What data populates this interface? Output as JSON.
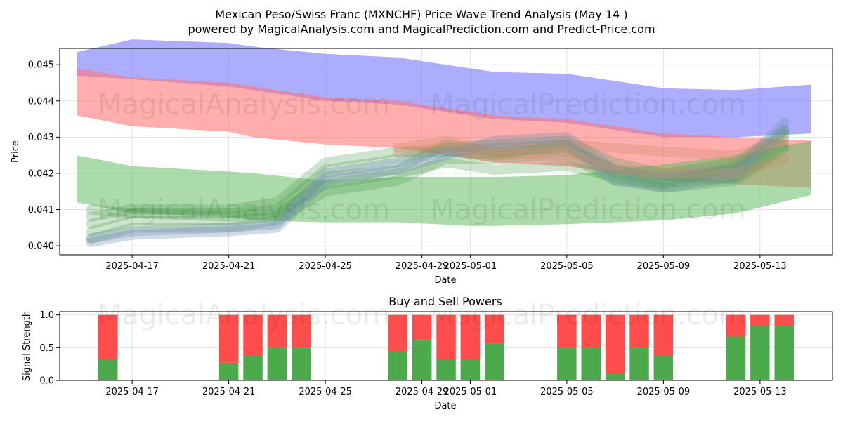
{
  "chart_data": [
    {
      "type": "area",
      "title_line1": "Mexican Peso/Swiss Franc (MXNCHF) Price Wave Trend Analysis (May 14 )",
      "title_line2": "powered by MagicalAnalysis.com and MagicalPrediction.com and Predict-Price.com",
      "xlabel": "Date",
      "ylabel": "Price",
      "x_domain": [
        "2025-04-14",
        "2025-05-16"
      ],
      "ylim": [
        0.03975,
        0.04545
      ],
      "x_ticks": [
        {
          "date": "2025-04-17",
          "label": "2025-04-17"
        },
        {
          "date": "2025-04-21",
          "label": "2025-04-21"
        },
        {
          "date": "2025-04-25",
          "label": "2025-04-25"
        },
        {
          "date": "2025-04-29",
          "label": "2025-04-29"
        },
        {
          "date": "2025-05-01",
          "label": "2025-05-01"
        },
        {
          "date": "2025-05-05",
          "label": "2025-05-05"
        },
        {
          "date": "2025-05-09",
          "label": "2025-05-09"
        },
        {
          "date": "2025-05-13",
          "label": "2025-05-13"
        }
      ],
      "y_ticks": [
        {
          "value": 0.04,
          "label": "0.040"
        },
        {
          "value": 0.041,
          "label": "0.041"
        },
        {
          "value": 0.042,
          "label": "0.042"
        },
        {
          "value": 0.043,
          "label": "0.043"
        },
        {
          "value": 0.044,
          "label": "0.044"
        },
        {
          "value": 0.045,
          "label": "0.045"
        }
      ],
      "grid": true,
      "bands": [
        {
          "name": "upper-band",
          "color": "#7777ff",
          "opacity": 0.6,
          "points": [
            [
              "2025-04-14.7",
              0.04535,
              0.0447
            ],
            [
              "2025-04-17",
              0.0457,
              0.0446
            ],
            [
              "2025-04-21",
              0.0456,
              0.0444
            ],
            [
              "2025-04-22",
              0.0455,
              0.0443
            ],
            [
              "2025-04-25",
              0.0453,
              0.044
            ],
            [
              "2025-04-28",
              0.0452,
              0.0439
            ],
            [
              "2025-05-01",
              0.0449,
              0.0436
            ],
            [
              "2025-05-02",
              0.0448,
              0.0435
            ],
            [
              "2025-05-05",
              0.04475,
              0.0434
            ],
            [
              "2025-05-09",
              0.04435,
              0.043
            ],
            [
              "2025-05-12",
              0.0443,
              0.043
            ],
            [
              "2025-05-15.1",
              0.04445,
              0.0431
            ]
          ]
        },
        {
          "name": "lower-band-red",
          "color": "#ff7777",
          "opacity": 0.6,
          "points": [
            [
              "2025-04-14.7",
              0.0449,
              0.0436
            ],
            [
              "2025-04-17",
              0.04465,
              0.0433
            ],
            [
              "2025-04-21",
              0.0445,
              0.04315
            ],
            [
              "2025-04-22",
              0.0444,
              0.043
            ],
            [
              "2025-04-25",
              0.0441,
              0.0428
            ],
            [
              "2025-04-28",
              0.044,
              0.0427
            ],
            [
              "2025-05-01",
              0.0437,
              0.0424
            ],
            [
              "2025-05-02",
              0.0436,
              0.0423
            ],
            [
              "2025-05-05",
              0.0435,
              0.0422
            ],
            [
              "2025-05-09",
              0.0431,
              0.0418
            ],
            [
              "2025-05-12",
              0.043,
              0.0417
            ],
            [
              "2025-05-15.1",
              0.0429,
              0.0416
            ]
          ]
        },
        {
          "name": "lower-band-green",
          "color": "#66bb66",
          "opacity": 0.55,
          "points": [
            [
              "2025-04-14.7",
              0.0425,
              0.0412
            ],
            [
              "2025-04-17",
              0.0422,
              0.0409
            ],
            [
              "2025-04-21",
              0.04205,
              0.0408
            ],
            [
              "2025-04-22",
              0.042,
              0.0407
            ],
            [
              "2025-04-25",
              0.0418,
              0.04065
            ],
            [
              "2025-04-28",
              0.0419,
              0.04065
            ],
            [
              "2025-05-01",
              0.0419,
              0.04055
            ],
            [
              "2025-05-02",
              0.0419,
              0.04055
            ],
            [
              "2025-05-05",
              0.04195,
              0.0406
            ],
            [
              "2025-05-09",
              0.04225,
              0.0407
            ],
            [
              "2025-05-12",
              0.0425,
              0.0409
            ],
            [
              "2025-05-15.1",
              0.0429,
              0.0414
            ]
          ]
        }
      ],
      "wave_paths": [
        {
          "color": "#4a9a4a",
          "opacity": 0.28,
          "points": [
            [
              "2025-04-15.3",
              0.0402
            ],
            [
              "2025-04-17",
              0.0405
            ],
            [
              "2025-04-21",
              0.0405
            ],
            [
              "2025-04-23",
              0.0407
            ],
            [
              "2025-04-25",
              0.0415
            ],
            [
              "2025-04-28",
              0.0418
            ],
            [
              "2025-04-30",
              0.0424
            ],
            [
              "2025-05-02",
              0.0424
            ],
            [
              "2025-05-05",
              0.0425
            ],
            [
              "2025-05-07",
              0.0418
            ],
            [
              "2025-05-09",
              0.0417
            ],
            [
              "2025-05-12",
              0.0419
            ],
            [
              "2025-05-14",
              0.0428
            ]
          ]
        },
        {
          "color": "#4a9a4a",
          "opacity": 0.28,
          "points": [
            [
              "2025-04-15.3",
              0.0404
            ],
            [
              "2025-04-17",
              0.0407
            ],
            [
              "2025-04-21",
              0.0407
            ],
            [
              "2025-04-23",
              0.0408
            ],
            [
              "2025-04-25",
              0.0419
            ],
            [
              "2025-04-28",
              0.0421
            ],
            [
              "2025-04-30",
              0.0428
            ],
            [
              "2025-05-02",
              0.0426
            ],
            [
              "2025-05-05",
              0.0427
            ],
            [
              "2025-05-07",
              0.0421
            ],
            [
              "2025-05-09",
              0.0418
            ],
            [
              "2025-05-12",
              0.0421
            ],
            [
              "2025-05-14",
              0.043
            ]
          ]
        },
        {
          "color": "#4a9a4a",
          "opacity": 0.28,
          "points": [
            [
              "2025-04-15.3",
              0.0406
            ],
            [
              "2025-04-17",
              0.0409
            ],
            [
              "2025-04-21",
              0.0409
            ],
            [
              "2025-04-23",
              0.041
            ],
            [
              "2025-04-25",
              0.0421
            ],
            [
              "2025-04-28",
              0.0424
            ],
            [
              "2025-04-30",
              0.0427
            ],
            [
              "2025-05-02",
              0.0428
            ],
            [
              "2025-05-05",
              0.0429
            ],
            [
              "2025-05-07",
              0.0423
            ],
            [
              "2025-05-09",
              0.042
            ],
            [
              "2025-05-12",
              0.0423
            ],
            [
              "2025-05-14",
              0.0432
            ]
          ]
        },
        {
          "color": "#4a9a4a",
          "opacity": 0.28,
          "points": [
            [
              "2025-04-15.3",
              0.0408
            ],
            [
              "2025-04-17",
              0.041
            ],
            [
              "2025-04-21",
              0.041
            ],
            [
              "2025-04-23",
              0.0412
            ],
            [
              "2025-04-25",
              0.0423
            ],
            [
              "2025-04-28",
              0.0426
            ],
            [
              "2025-04-30",
              0.0426
            ],
            [
              "2025-05-02",
              0.0425
            ],
            [
              "2025-05-05",
              0.0428
            ],
            [
              "2025-05-07",
              0.042
            ],
            [
              "2025-05-09",
              0.0417
            ],
            [
              "2025-05-12",
              0.0422
            ],
            [
              "2025-05-14",
              0.0431
            ]
          ]
        },
        {
          "color": "#4a9a4a",
          "opacity": 0.28,
          "points": [
            [
              "2025-04-15.3",
              0.041
            ],
            [
              "2025-04-17",
              0.0409
            ],
            [
              "2025-04-21",
              0.0408
            ],
            [
              "2025-04-23",
              0.0409
            ],
            [
              "2025-04-25",
              0.0417
            ],
            [
              "2025-04-28",
              0.042
            ],
            [
              "2025-04-30",
              0.0423
            ],
            [
              "2025-05-02",
              0.0421
            ],
            [
              "2025-05-05",
              0.0422
            ],
            [
              "2025-05-07",
              0.0419
            ],
            [
              "2025-05-09",
              0.0416
            ],
            [
              "2025-05-12",
              0.0418
            ],
            [
              "2025-05-14",
              0.0427
            ]
          ]
        },
        {
          "color": "#6f8fb5",
          "opacity": 0.32,
          "points": [
            [
              "2025-04-15.3",
              0.0402
            ],
            [
              "2025-04-17",
              0.0404
            ],
            [
              "2025-04-21",
              0.0405
            ],
            [
              "2025-04-23",
              0.0406
            ],
            [
              "2025-04-25",
              0.042
            ],
            [
              "2025-04-28",
              0.0423
            ],
            [
              "2025-04-30",
              0.0426
            ],
            [
              "2025-05-02",
              0.0427
            ],
            [
              "2025-05-05",
              0.0428
            ],
            [
              "2025-05-07",
              0.0418
            ],
            [
              "2025-05-09",
              0.0416
            ],
            [
              "2025-05-12",
              0.0419
            ],
            [
              "2025-05-14",
              0.0432
            ]
          ]
        },
        {
          "color": "#6f8fb5",
          "opacity": 0.32,
          "points": [
            [
              "2025-04-15.3",
              0.0401
            ],
            [
              "2025-04-17",
              0.0403
            ],
            [
              "2025-04-21",
              0.0404
            ],
            [
              "2025-04-23",
              0.0405
            ],
            [
              "2025-04-25",
              0.0418
            ],
            [
              "2025-04-28",
              0.0421
            ],
            [
              "2025-04-30",
              0.0425
            ],
            [
              "2025-05-02",
              0.0429
            ],
            [
              "2025-05-05",
              0.043
            ],
            [
              "2025-05-07",
              0.0421
            ],
            [
              "2025-05-09",
              0.0419
            ],
            [
              "2025-05-12",
              0.0421
            ],
            [
              "2025-05-14",
              0.0434
            ]
          ]
        },
        {
          "color": "#c98a6a",
          "opacity": 0.3,
          "points": [
            [
              "2025-04-28",
              0.0427
            ],
            [
              "2025-04-30",
              0.0429
            ],
            [
              "2025-05-02",
              0.0426
            ],
            [
              "2025-05-05",
              0.0428
            ],
            [
              "2025-05-07",
              0.0427
            ],
            [
              "2025-05-09",
              0.0426
            ],
            [
              "2025-05-12",
              0.0425
            ],
            [
              "2025-05-14",
              0.0429
            ]
          ]
        },
        {
          "color": "#c98a6a",
          "opacity": 0.3,
          "points": [
            [
              "2025-04-28",
              0.0426
            ],
            [
              "2025-04-30",
              0.0427
            ],
            [
              "2025-05-02",
              0.0425
            ],
            [
              "2025-05-05",
              0.0426
            ],
            [
              "2025-05-07",
              0.0421
            ],
            [
              "2025-05-09",
              0.042
            ],
            [
              "2025-05-12",
              0.042
            ],
            [
              "2025-05-14",
              0.0424
            ]
          ]
        }
      ],
      "watermarks": [
        "MagicalAnalysis.com",
        "MagicalPrediction.com"
      ]
    },
    {
      "type": "bar",
      "title": "Buy and Sell Powers",
      "xlabel": "Date",
      "ylabel": "Signal Strength",
      "ylim": [
        0,
        1.05
      ],
      "y_ticks": [
        {
          "value": 0.0,
          "label": "0.0"
        },
        {
          "value": 0.5,
          "label": "0.5"
        },
        {
          "value": 1.0,
          "label": "1.0"
        }
      ],
      "x_domain": [
        "2025-04-14",
        "2025-05-16"
      ],
      "x_ticks": [
        {
          "date": "2025-04-17",
          "label": "2025-04-17"
        },
        {
          "date": "2025-04-21",
          "label": "2025-04-21"
        },
        {
          "date": "2025-04-25",
          "label": "2025-04-25"
        },
        {
          "date": "2025-04-29",
          "label": "2025-04-29"
        },
        {
          "date": "2025-05-01",
          "label": "2025-05-01"
        },
        {
          "date": "2025-05-05",
          "label": "2025-05-05"
        },
        {
          "date": "2025-05-09",
          "label": "2025-05-09"
        },
        {
          "date": "2025-05-13",
          "label": "2025-05-13"
        }
      ],
      "buy_color": "#4caa4c",
      "sell_color": "#ff4c4c",
      "series": [
        {
          "name": "buy",
          "values": [
            0.33,
            0.27,
            0.39,
            0.5,
            0.5,
            0.45,
            0.61,
            0.33,
            0.33,
            0.56,
            0.5,
            0.5,
            0.11,
            0.5,
            0.39,
            0.67,
            0.83,
            0.83
          ]
        },
        {
          "name": "sell",
          "values": [
            0.67,
            0.73,
            0.61,
            0.5,
            0.5,
            0.55,
            0.39,
            0.67,
            0.67,
            0.44,
            0.5,
            0.5,
            0.89,
            0.5,
            0.61,
            0.33,
            0.17,
            0.17
          ]
        }
      ],
      "dates": [
        "2025-04-16",
        "2025-04-21",
        "2025-04-22",
        "2025-04-23",
        "2025-04-24",
        "2025-04-28",
        "2025-04-29",
        "2025-04-30",
        "2025-05-01",
        "2025-05-02",
        "2025-05-05",
        "2025-05-06",
        "2025-05-07",
        "2025-05-08",
        "2025-05-09",
        "2025-05-12",
        "2025-05-13",
        "2025-05-14"
      ],
      "watermarks": [
        "MagicalAnalysis.com",
        "MagicalPrediction.com"
      ]
    }
  ]
}
